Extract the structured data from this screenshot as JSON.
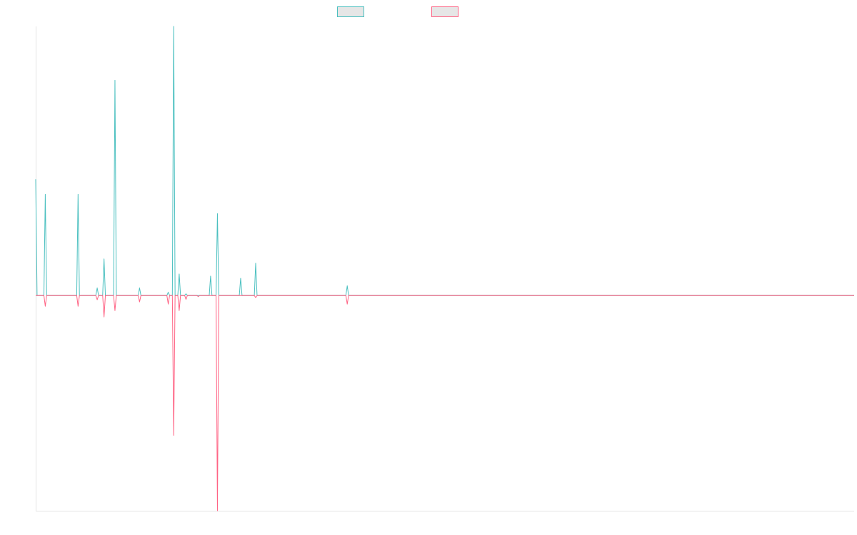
{
  "chart_data": {
    "type": "line",
    "title": "",
    "xlabel": "",
    "ylabel": "",
    "legend_position": "top-center",
    "grid": false,
    "x": [
      0,
      1,
      2,
      3,
      4,
      5,
      6,
      7,
      8,
      9,
      10,
      11,
      12,
      13,
      14,
      15,
      16,
      17,
      18,
      19,
      20,
      21,
      22,
      23,
      24,
      25,
      26,
      27,
      28,
      29,
      30,
      31,
      32,
      33,
      34,
      35,
      36,
      37,
      38,
      39,
      40,
      41,
      42,
      43,
      44,
      45,
      46,
      47,
      48,
      49,
      50,
      51,
      52,
      53,
      54,
      55,
      56,
      57,
      58,
      59,
      60,
      61,
      62,
      63,
      64,
      65,
      66,
      67,
      68,
      69,
      70,
      71,
      72,
      73,
      74,
      75,
      76,
      77,
      78,
      79,
      80,
      81,
      82,
      83,
      84,
      85,
      86,
      87,
      88,
      89,
      90,
      91,
      92,
      93,
      94,
      95,
      96,
      97,
      98,
      99,
      100,
      101,
      102,
      103,
      104,
      105,
      106,
      107,
      108,
      109,
      110,
      111,
      112,
      113,
      114,
      115,
      116,
      117,
      118,
      119,
      120,
      121,
      122,
      123,
      124,
      125,
      126,
      127,
      128,
      129,
      130,
      131,
      132,
      133,
      134,
      135,
      136,
      137,
      138,
      139,
      140,
      141,
      142,
      143,
      144,
      145,
      146,
      147,
      148,
      149,
      150,
      151,
      152,
      153,
      154,
      155,
      156,
      157,
      158,
      159,
      160,
      161,
      162,
      163,
      164,
      165,
      166,
      167,
      168,
      169,
      170,
      171,
      172,
      173,
      174,
      175,
      176,
      177,
      178,
      179,
      180,
      181,
      182,
      183,
      184,
      185,
      186,
      187,
      188,
      189,
      190,
      191,
      192,
      193,
      194,
      195,
      196,
      197,
      198,
      199,
      200,
      201,
      202,
      203,
      204,
      205,
      206,
      207,
      208,
      209,
      210,
      211,
      212,
      213,
      214,
      215,
      216,
      217,
      218,
      219,
      220,
      221,
      222,
      223,
      224,
      225,
      226,
      227,
      228,
      229,
      230,
      231,
      232,
      233,
      234,
      235,
      236,
      237,
      238,
      239,
      240,
      241,
      242,
      243,
      244,
      245,
      246,
      247,
      248,
      249,
      250,
      251,
      252,
      253,
      254,
      255,
      256,
      257,
      258,
      259,
      260,
      261,
      262,
      263,
      264,
      265,
      266,
      267,
      268,
      269,
      270,
      271,
      272,
      273,
      274,
      275,
      276,
      277,
      278,
      279,
      280,
      281,
      282,
      283,
      284,
      285,
      286,
      287,
      288,
      289,
      290,
      291,
      292,
      293,
      294,
      295,
      296,
      297,
      298,
      299,
      300,
      301,
      302,
      303,
      304,
      305,
      306,
      307,
      308,
      309,
      310,
      311,
      312,
      313,
      314,
      315,
      316,
      317,
      318,
      319,
      320,
      321,
      322,
      323,
      324,
      325,
      326,
      327,
      328,
      329,
      330,
      331,
      332,
      333,
      334,
      335,
      336,
      337,
      338,
      339,
      340,
      341,
      342,
      343,
      344,
      345,
      346,
      347,
      348,
      349,
      350,
      351,
      352,
      353,
      354,
      355,
      356,
      357,
      358,
      359,
      360,
      361,
      362,
      363,
      364,
      365,
      366,
      367,
      368,
      369,
      370,
      371,
      372,
      373,
      374,
      375,
      376,
      377,
      378,
      379,
      380,
      381,
      382,
      383,
      384,
      385,
      386,
      387,
      388,
      389,
      390,
      391,
      392,
      393,
      394,
      395,
      396,
      397,
      398,
      399,
      400,
      401,
      402,
      403,
      404,
      405,
      406,
      407,
      408,
      409,
      410,
      411,
      412,
      413,
      414,
      415,
      416,
      417,
      418,
      419,
      420,
      421,
      422,
      423,
      424,
      425,
      426,
      427,
      428,
      429,
      430,
      431,
      432,
      433,
      434,
      435,
      436,
      437,
      438,
      439,
      440,
      441,
      442,
      443,
      444,
      445,
      446,
      447,
      448,
      449,
      450,
      451,
      452,
      453,
      454,
      455,
      456,
      457,
      458,
      459,
      460,
      461,
      462,
      463,
      464,
      465,
      466,
      467,
      468,
      469,
      470,
      471,
      472,
      473,
      474,
      475,
      476,
      477,
      478,
      479,
      480,
      481,
      482,
      483,
      484,
      485,
      486,
      487,
      488,
      489,
      490,
      491,
      492,
      493,
      494,
      495,
      496,
      497,
      498,
      499,
      500,
      501,
      502,
      503,
      504,
      505,
      506,
      507,
      508,
      509,
      510,
      511,
      512,
      513,
      514,
      515,
      516,
      517,
      518,
      519,
      520,
      521,
      522,
      523,
      524,
      525,
      526,
      527,
      528,
      529,
      530,
      531,
      532,
      533,
      534,
      535,
      536,
      537,
      538,
      539,
      540,
      541,
      542,
      543,
      544,
      545,
      546,
      547,
      548,
      549,
      550,
      551,
      552,
      553,
      554,
      555,
      556,
      557,
      558,
      559,
      560,
      561,
      562,
      563,
      564,
      565,
      566,
      567,
      568,
      569,
      570,
      571,
      572,
      573,
      574,
      575,
      576,
      577,
      578,
      579,
      580,
      581,
      582,
      583,
      584,
      585,
      586,
      587,
      588,
      589,
      590,
      591,
      592,
      593,
      594,
      595,
      596,
      597,
      598,
      599
    ],
    "ylim": [
      -1.0,
      1.25
    ],
    "series": [
      {
        "name": "",
        "color": "#4bc0c0",
        "spikes": [
          [
            0,
            0.54
          ],
          [
            7,
            0.47
          ],
          [
            31,
            0.47
          ],
          [
            45,
            0.035
          ],
          [
            50,
            0.17
          ],
          [
            58,
            1.0
          ],
          [
            76,
            0.035
          ],
          [
            97,
            0.015
          ],
          [
            101,
            1.25
          ],
          [
            105,
            0.1
          ],
          [
            110,
            0.008
          ],
          [
            128,
            0.09
          ],
          [
            133,
            0.38
          ],
          [
            150,
            0.08
          ],
          [
            161,
            0.15
          ],
          [
            228,
            0.045
          ]
        ]
      },
      {
        "name": "",
        "color": "#ff6384",
        "spikes": [
          [
            7,
            -0.05
          ],
          [
            31,
            -0.05
          ],
          [
            45,
            -0.02
          ],
          [
            50,
            -0.1
          ],
          [
            58,
            -0.07
          ],
          [
            76,
            -0.03
          ],
          [
            97,
            -0.04
          ],
          [
            101,
            -0.65
          ],
          [
            105,
            -0.07
          ],
          [
            110,
            -0.018
          ],
          [
            119,
            -0.005
          ],
          [
            133,
            -1.0
          ],
          [
            161,
            -0.01
          ],
          [
            228,
            -0.04
          ]
        ]
      }
    ]
  }
}
